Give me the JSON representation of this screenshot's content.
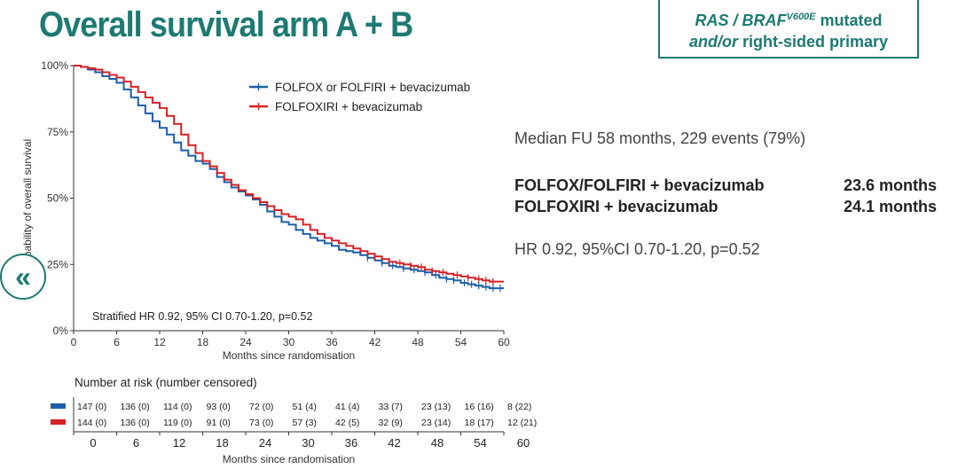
{
  "slide": {
    "title": "Overall survival arm A + B",
    "tag_line1_part1": "RAS",
    "tag_line1_sep": " / ",
    "tag_line1_part2": "BRAF",
    "tag_line1_sup": "V600E",
    "tag_line1_part3": " mutated",
    "tag_line2_part1": "and/or",
    "tag_line2_part2": " right-sided primary",
    "median_fu": "Median FU 58 months, 229 events (79%)",
    "arms": [
      {
        "name": "FOLFOX/FOLFIRI + bevacizumab",
        "median": "23.6 months"
      },
      {
        "name": "FOLFOXIRI + bevacizumab",
        "median": "24.1 months"
      }
    ],
    "hr_text": "HR 0.92, 95%CI 0.70-1.20, p=0.52",
    "nav_icon": "double-chevron-left-icon",
    "nav_glyph": "«"
  },
  "chart_data": {
    "type": "line",
    "subtype": "kaplan-meier",
    "ylabel": "Probability of overall survival",
    "ylabel_visible": "bability of overall survival",
    "xlabel": "Months since randomisation",
    "xlim": [
      0,
      60
    ],
    "ylim": [
      0,
      100
    ],
    "x_ticks": [
      "0",
      "6",
      "12",
      "18",
      "24",
      "30",
      "36",
      "42",
      "48",
      "54",
      "60"
    ],
    "y_ticks": [
      "0%",
      "25%",
      "50%",
      "75%",
      "100%"
    ],
    "y_ticks_visible": [
      "0%",
      "25%",
      "50%",
      "75%",
      "100%"
    ],
    "annotation": "Stratified HR 0.92, 95% CI 0.70-1.20, p=0.52",
    "legend_position": "top-right",
    "series": [
      {
        "name": "FOLFOX or FOLFIRI + bevacizumab",
        "color": "#1a5fa8",
        "x": [
          0,
          1,
          2,
          3,
          4,
          5,
          6,
          7,
          8,
          9,
          10,
          11,
          12,
          13,
          14,
          15,
          16,
          17,
          18,
          19,
          20,
          21,
          22,
          23,
          24,
          25,
          26,
          27,
          28,
          29,
          30,
          31,
          32,
          33,
          34,
          35,
          36,
          37,
          38,
          39,
          40,
          41,
          42,
          43,
          44,
          45,
          46,
          47,
          48,
          49,
          50,
          51,
          52,
          53,
          54,
          55,
          56,
          57,
          58,
          59,
          60
        ],
        "y": [
          100,
          99.5,
          98.5,
          97.5,
          96,
          95,
          93.5,
          91,
          88,
          85,
          82,
          79,
          76.5,
          74,
          71,
          68,
          66,
          64,
          63,
          61,
          58,
          56,
          54,
          52.5,
          51,
          49.5,
          47.5,
          45,
          43,
          41,
          40,
          38,
          36.5,
          35,
          34,
          33,
          32,
          30.5,
          30,
          29.5,
          28.5,
          27.5,
          26.5,
          25.5,
          24.5,
          24,
          23.5,
          23,
          22.5,
          22,
          21,
          20,
          19.5,
          19,
          18,
          17.5,
          17,
          16.5,
          16,
          16,
          16
        ],
        "censor_x": [
          41,
          43,
          44.5,
          46,
          47.5,
          49,
          50.5,
          52,
          53,
          54.5,
          55.5,
          56.5,
          57.5,
          58.5,
          59.5
        ]
      },
      {
        "name": "FOLFOXIRI + bevacizumab",
        "color": "#d72027",
        "x": [
          0,
          1,
          2,
          3,
          4,
          5,
          6,
          7,
          8,
          9,
          10,
          11,
          12,
          13,
          14,
          15,
          16,
          17,
          18,
          19,
          20,
          21,
          22,
          23,
          24,
          25,
          26,
          27,
          28,
          29,
          30,
          31,
          32,
          33,
          34,
          35,
          36,
          37,
          38,
          39,
          40,
          41,
          42,
          43,
          44,
          45,
          46,
          47,
          48,
          49,
          50,
          51,
          52,
          53,
          54,
          55,
          56,
          57,
          58,
          59,
          60
        ],
        "y": [
          100,
          99.5,
          99,
          98.5,
          97.5,
          96.5,
          95.5,
          94,
          92,
          90,
          88,
          86,
          84,
          81,
          78,
          74,
          70,
          67,
          64,
          62,
          59.5,
          57,
          55,
          53,
          51.5,
          50,
          48.5,
          47,
          45.5,
          44,
          43,
          42,
          40,
          38,
          36.5,
          35,
          34,
          33,
          32,
          31,
          30,
          29,
          28,
          27,
          26,
          25.5,
          25,
          24.5,
          24,
          23,
          22.5,
          22,
          21.5,
          21,
          20.5,
          20,
          19.5,
          19,
          18.5,
          18.5,
          18.5
        ],
        "censor_x": [
          42,
          44,
          45.5,
          47,
          48.5,
          50,
          51.5,
          53.5,
          55,
          56.5,
          57.5,
          58.5
        ]
      }
    ],
    "risk_table": {
      "title": "Number at risk (number censored)",
      "xlabel": "Months since randomisation",
      "times": [
        "0",
        "6",
        "12",
        "18",
        "24",
        "30",
        "36",
        "42",
        "48",
        "54",
        "60"
      ],
      "rows": [
        {
          "series": "FOLFOX or FOLFIRI + bevacizumab",
          "color": "#1a5fa8",
          "values": [
            "147 (0)",
            "136 (0)",
            "114 (0)",
            "93 (0)",
            "72 (0)",
            "51 (4)",
            "41 (4)",
            "33 (7)",
            "23 (13)",
            "16 (16)",
            "8 (22)"
          ]
        },
        {
          "series": "FOLFOXIRI + bevacizumab",
          "color": "#d72027",
          "values": [
            "144 (0)",
            "136 (0)",
            "119 (0)",
            "91 (0)",
            "73 (0)",
            "57 (3)",
            "42 (5)",
            "32 (9)",
            "23 (14)",
            "18 (17)",
            "12 (21)"
          ]
        }
      ]
    }
  }
}
